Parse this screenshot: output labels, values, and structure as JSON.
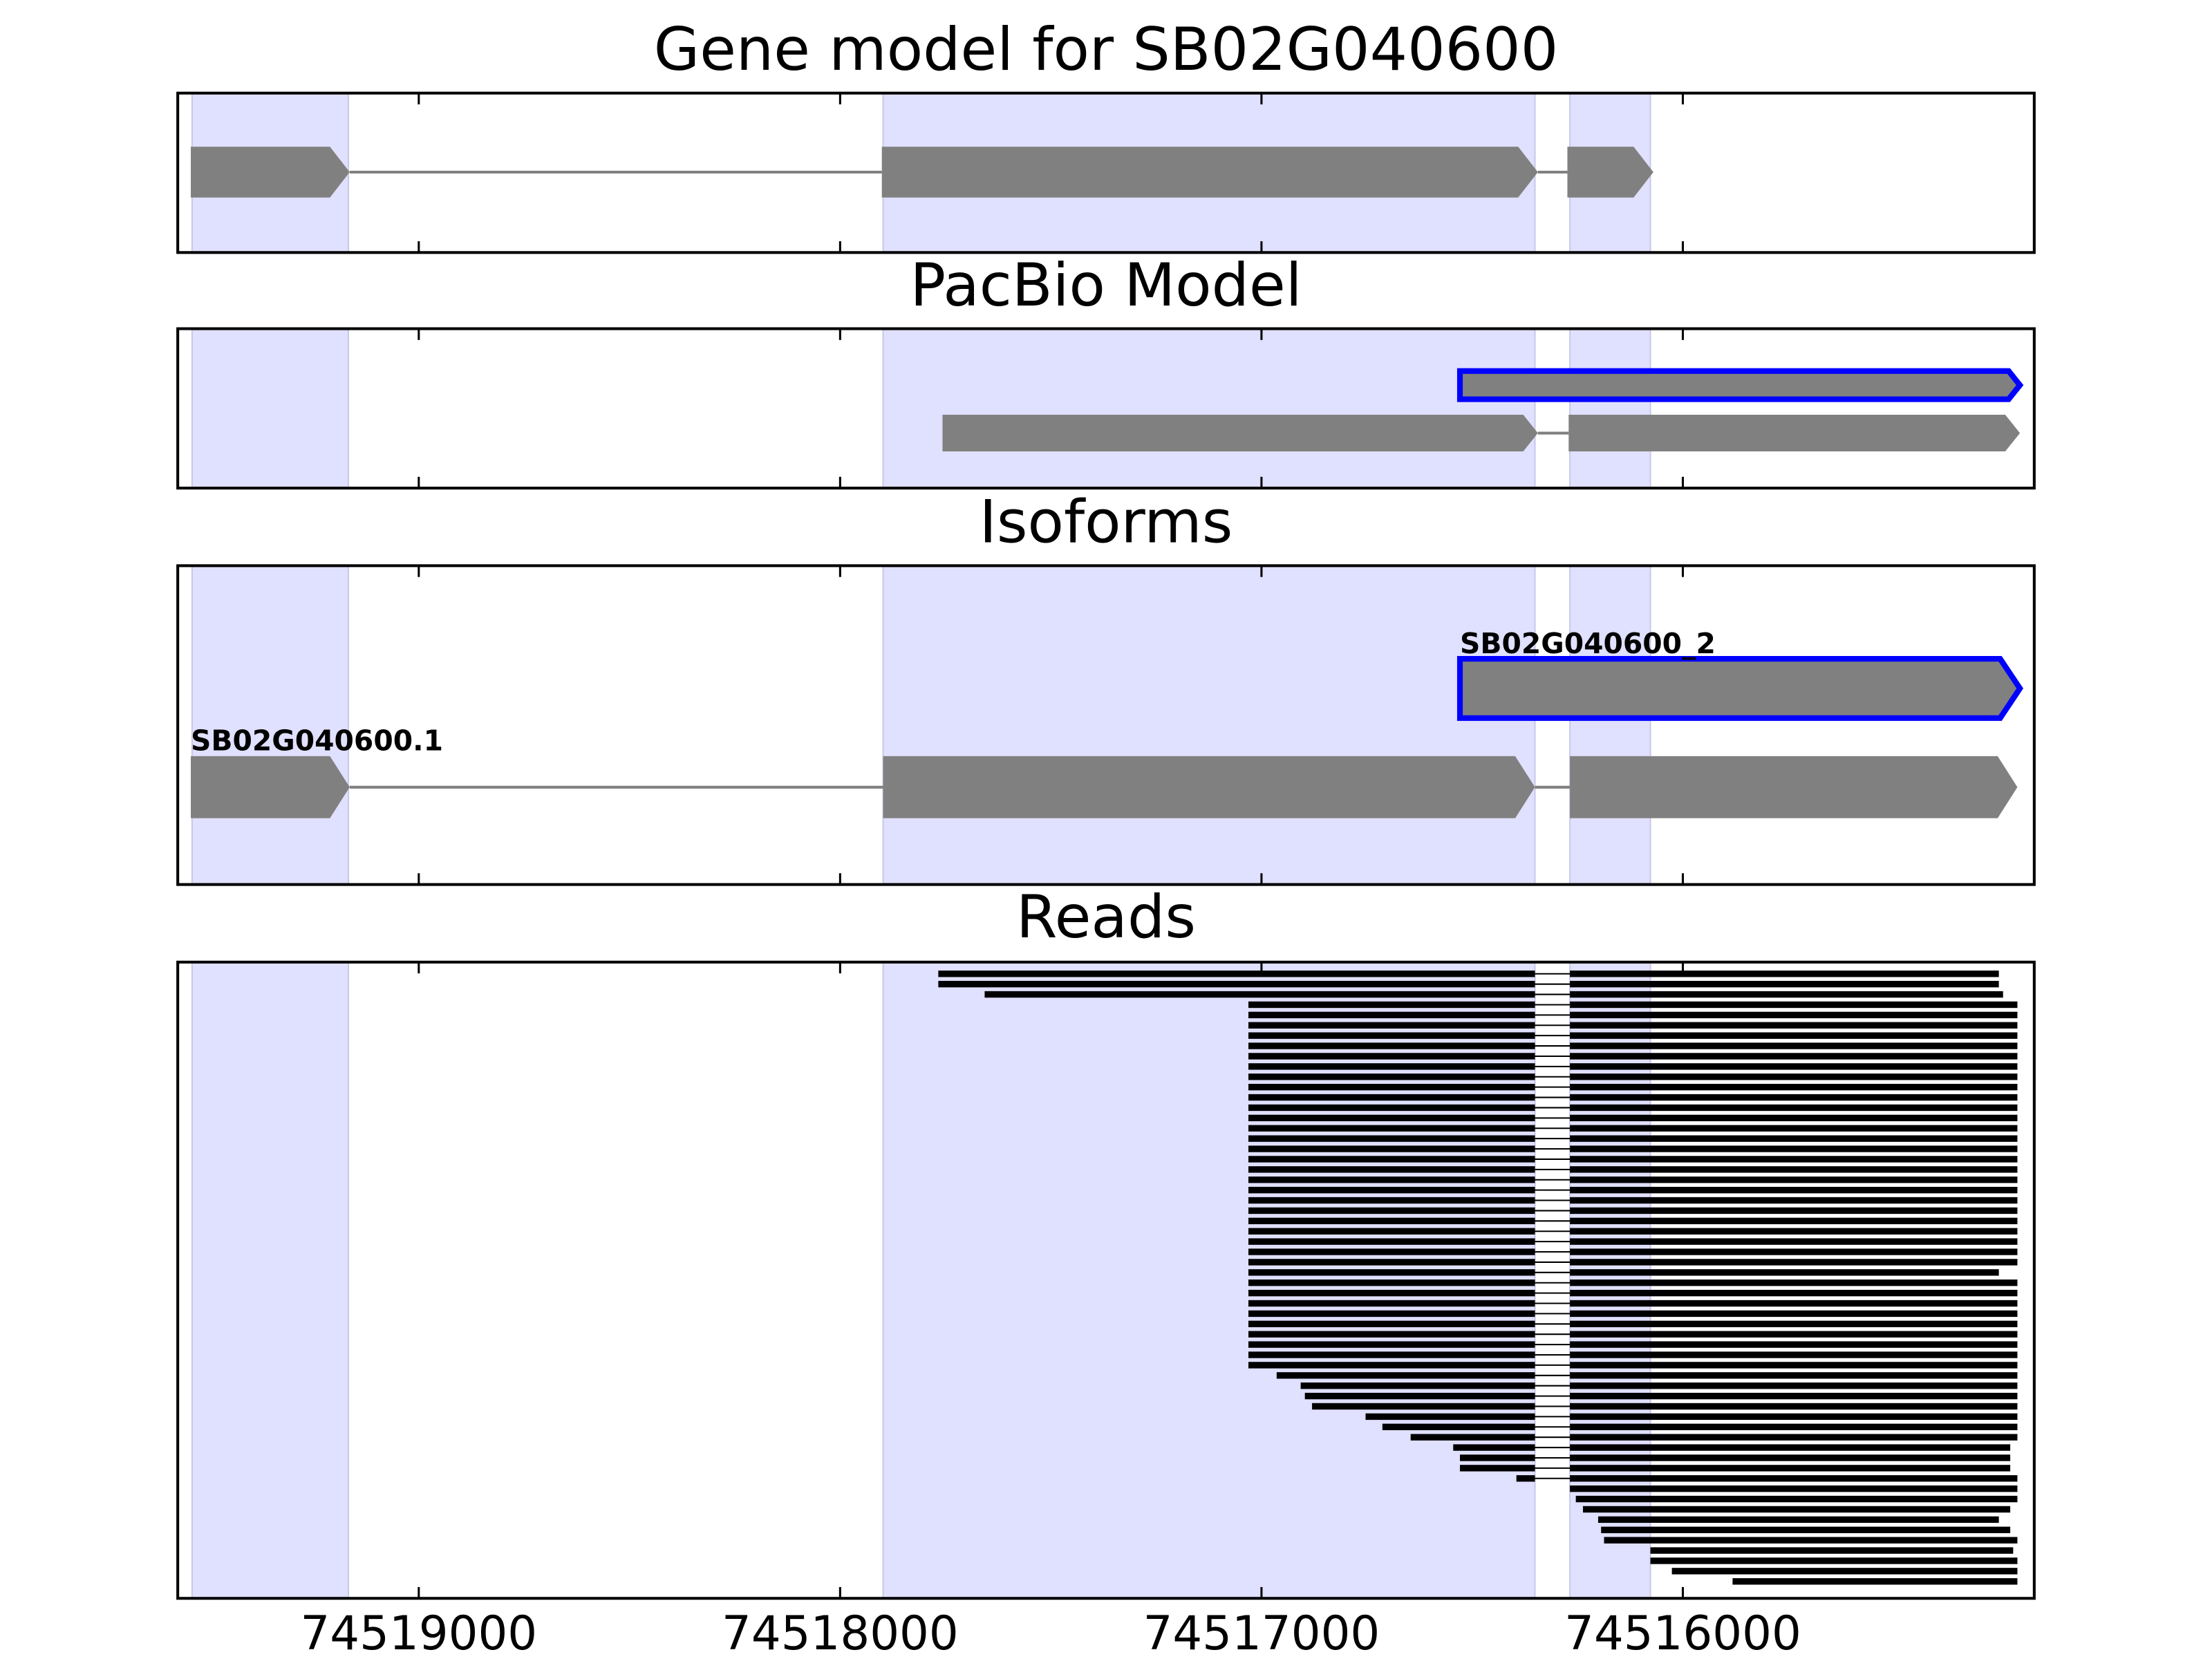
{
  "chart_data": {
    "type": "gene-tracks",
    "xlim": [
      74519572,
      74515166
    ],
    "xticks": [
      74519000,
      74518000,
      74517000,
      74516000
    ],
    "highlight_color": "#e0e0ff",
    "highlights": [
      [
        74519538,
        74519167
      ],
      [
        74517898,
        74516351
      ],
      [
        74516268,
        74516077
      ]
    ],
    "block_color": "#808080",
    "outline_color": "#0000ff",
    "panels": [
      {
        "title": "Gene model for SB02G040600",
        "tracks": [
          {
            "blocks": [
              [
                74519541,
                74519164
              ],
              [
                74517901,
                74516344
              ],
              [
                74516274,
                74516070
              ]
            ]
          }
        ]
      },
      {
        "title": "PacBio Model",
        "tracks": [
          {
            "outlined": true,
            "blocks": [
              [
                74516529,
                74515200
              ]
            ]
          },
          {
            "blocks": [
              [
                74517757,
                74516344
              ],
              [
                74516271,
                74515200
              ]
            ]
          }
        ]
      },
      {
        "title": "Isoforms",
        "tracks": [
          {
            "name": "SB02G040600_2",
            "outlined": true,
            "blocks": [
              [
                74516529,
                74515200
              ]
            ]
          },
          {
            "name": "SB02G040600.1",
            "blocks": [
              [
                74519541,
                74519164
              ],
              [
                74517898,
                74516351
              ],
              [
                74516268,
                74515206
              ]
            ]
          }
        ]
      }
    ],
    "reads": {
      "title": "Reads",
      "color": "#000000",
      "starts": [
        74517767,
        74517767,
        74517657,
        74517031,
        74517031,
        74517031,
        74517031,
        74517031,
        74517031,
        74517031,
        74517031,
        74517031,
        74517031,
        74517031,
        74517031,
        74517031,
        74517031,
        74517031,
        74517031,
        74517031,
        74517031,
        74517031,
        74517031,
        74517031,
        74517031,
        74517031,
        74517031,
        74517031,
        74517031,
        74517031,
        74517031,
        74517031,
        74517031,
        74517031,
        74517031,
        74517031,
        74517031,
        74517031,
        74517031,
        74516964,
        74516907,
        74516897,
        74516880,
        74516753,
        74516713,
        74516646,
        74516545,
        74516529,
        74516529,
        74516395,
        74516268,
        74516254,
        74516237,
        74516201,
        74516194,
        74516187,
        74516077,
        74516077,
        74516026,
        74515882
      ],
      "ends": [
        74515250,
        74515250,
        74515240,
        74515206,
        74515206,
        74515206,
        74515206,
        74515206,
        74515206,
        74515206,
        74515206,
        74515206,
        74515206,
        74515206,
        74515206,
        74515206,
        74515206,
        74515206,
        74515206,
        74515206,
        74515206,
        74515206,
        74515206,
        74515206,
        74515206,
        74515206,
        74515206,
        74515206,
        74515206,
        74515250,
        74515206,
        74515206,
        74515206,
        74515206,
        74515206,
        74515206,
        74515206,
        74515206,
        74515206,
        74515206,
        74515206,
        74515206,
        74515206,
        74515206,
        74515206,
        74515206,
        74515223,
        74515223,
        74515223,
        74515206,
        74515206,
        74515206,
        74515223,
        74515250,
        74515223,
        74515206,
        74515216,
        74515206,
        74515206,
        74515206
      ]
    }
  }
}
